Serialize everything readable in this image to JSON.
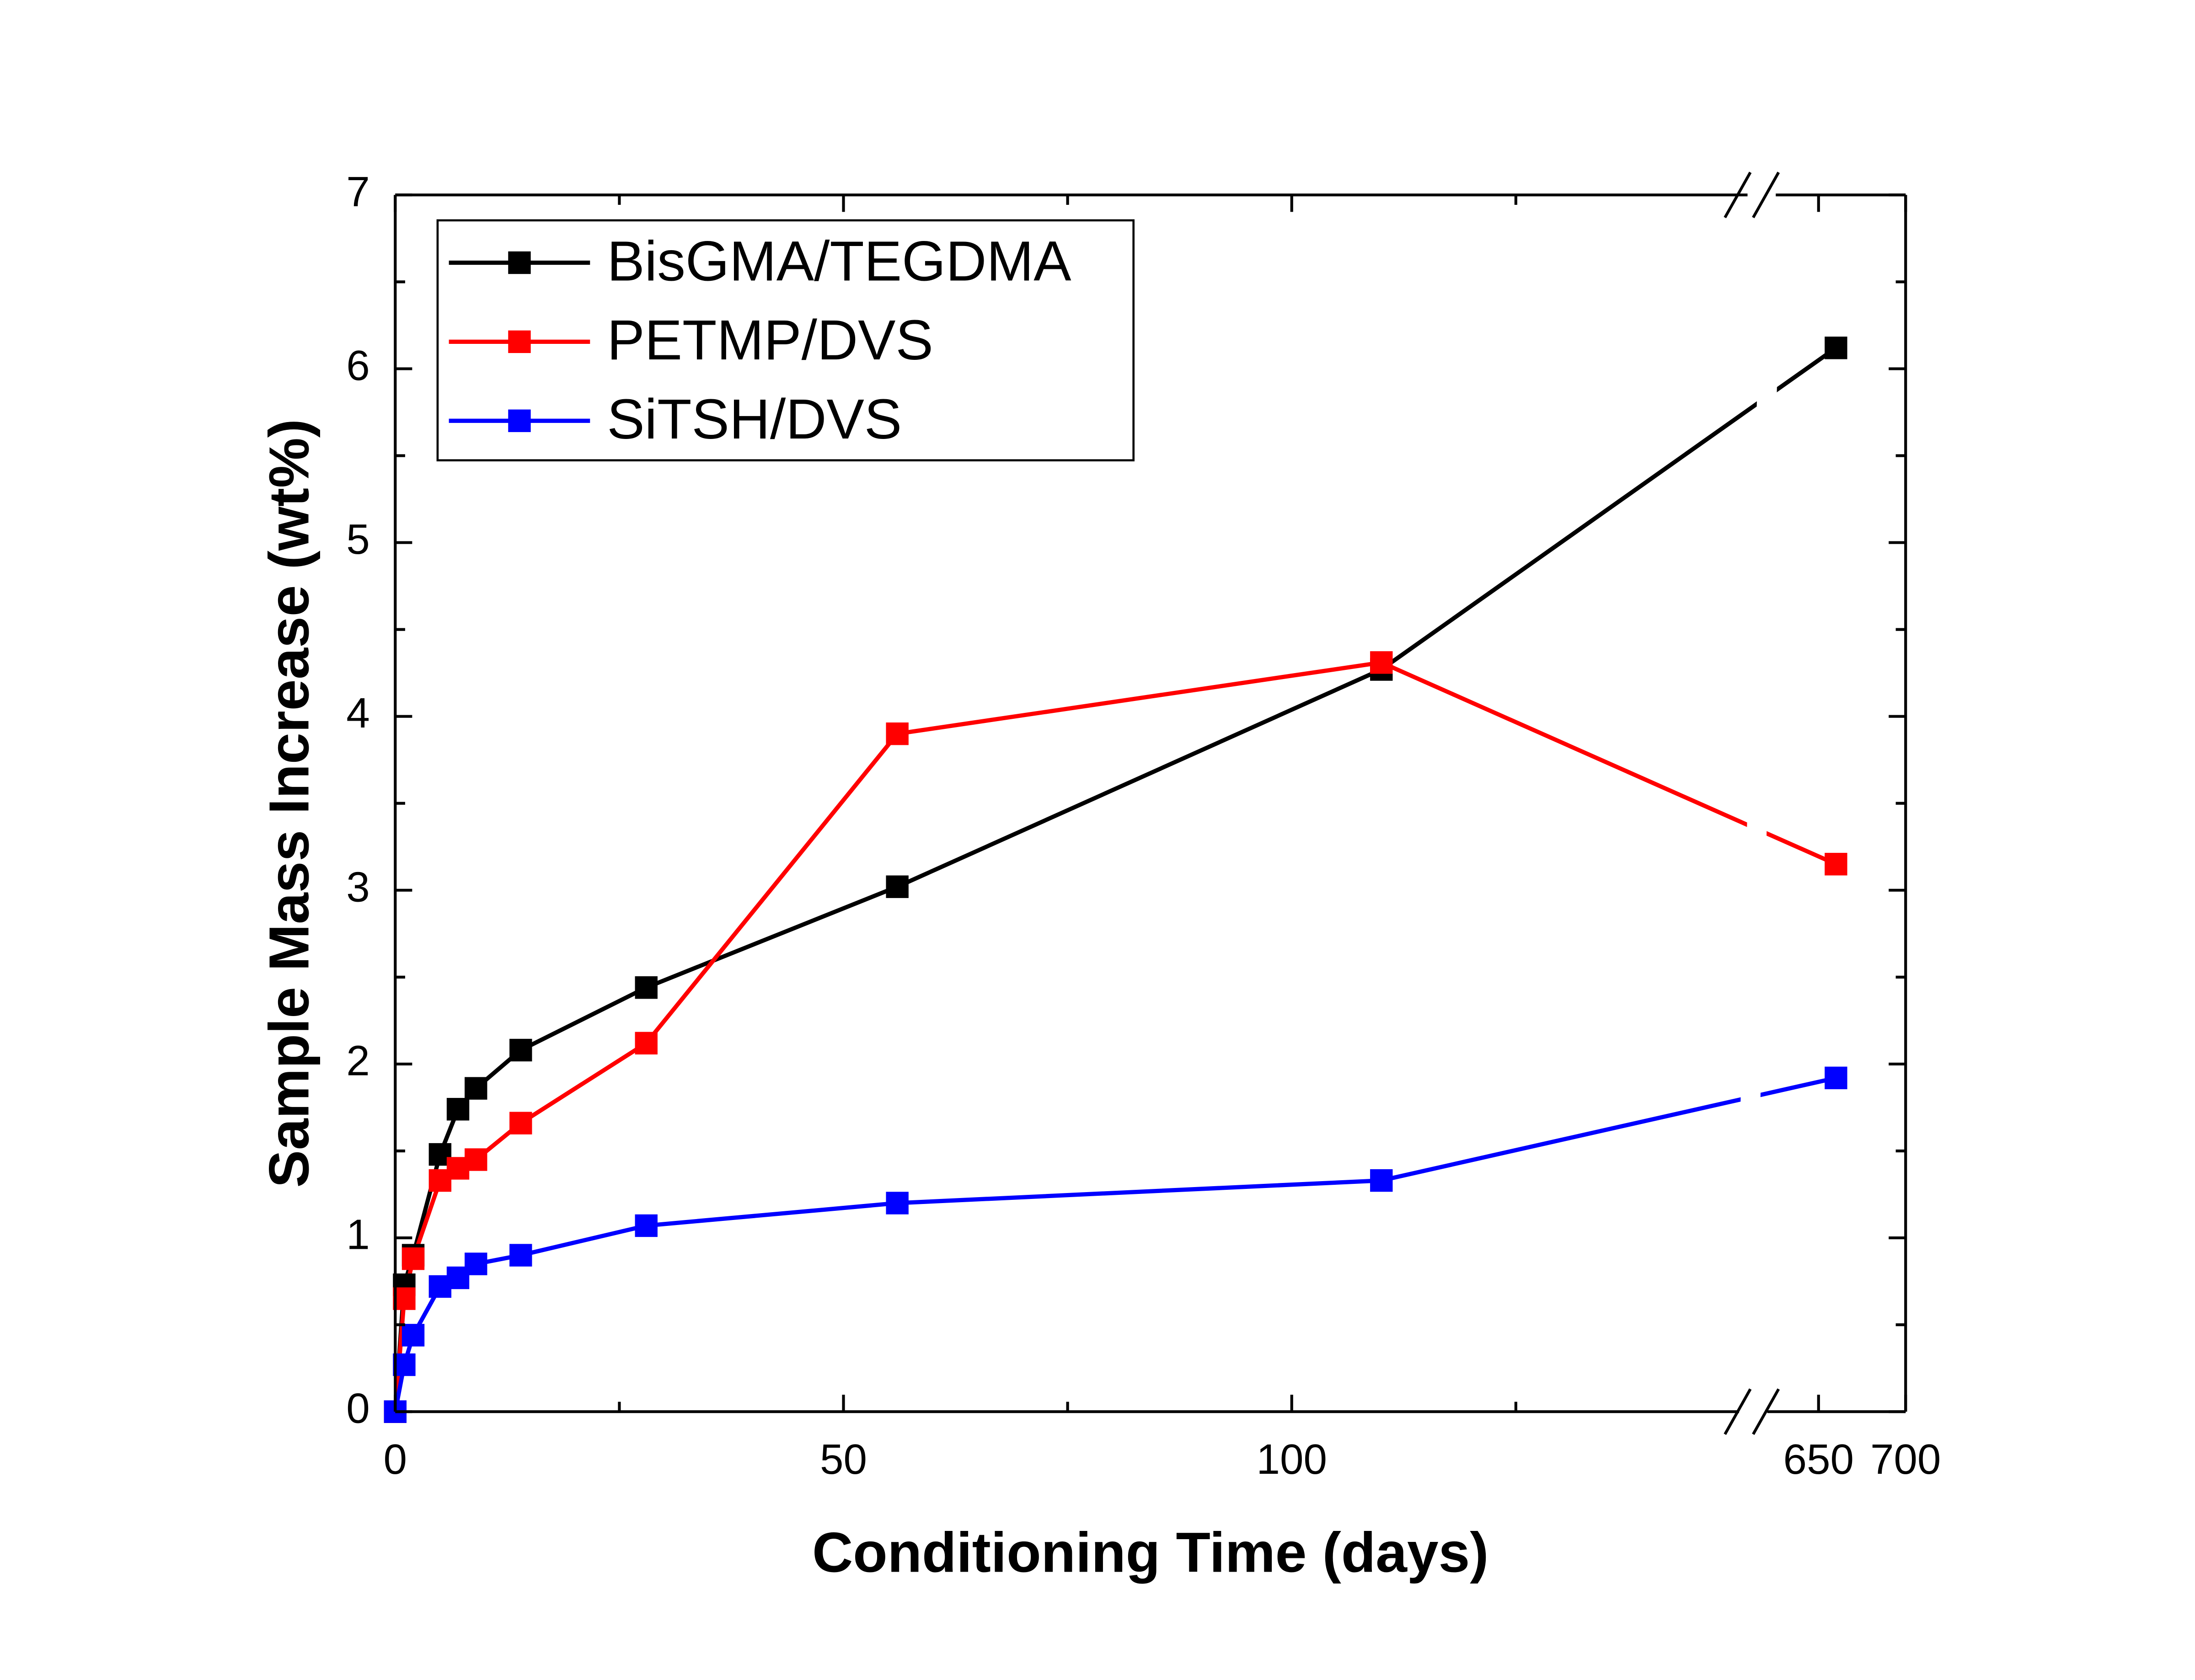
{
  "chart_data": {
    "type": "line",
    "xlabel": "Conditioning Time (days)",
    "ylabel": "Sample Mass Increase (wt%)",
    "x": [
      0,
      1,
      2,
      5,
      7,
      9,
      14,
      28,
      56,
      110,
      660
    ],
    "series": [
      {
        "name": "BisGMA/TEGDMA",
        "color": "#000000",
        "values": [
          0,
          0.73,
          0.9,
          1.48,
          1.74,
          1.86,
          2.08,
          2.44,
          3.02,
          4.27,
          6.12
        ]
      },
      {
        "name": "PETMP/DVS",
        "color": "#ff0000",
        "values": [
          0,
          0.65,
          0.88,
          1.33,
          1.4,
          1.45,
          1.66,
          2.12,
          3.9,
          4.31,
          3.15
        ]
      },
      {
        "name": "SiTSH/DVS",
        "color": "#0000ff",
        "values": [
          0,
          0.27,
          0.44,
          0.72,
          0.77,
          0.85,
          0.9,
          1.07,
          1.2,
          1.33,
          1.92
        ]
      }
    ],
    "xlim_segments": [
      [
        0,
        151
      ],
      [
        623,
        700
      ]
    ],
    "xticks": [
      0,
      50,
      100,
      650,
      700
    ],
    "xminor_ticks": [
      25,
      75,
      125
    ],
    "ylim": [
      0,
      7
    ],
    "yticks": [
      0,
      1,
      2,
      3,
      4,
      5,
      6,
      7
    ],
    "yminor_ticks": [
      0.5,
      1.5,
      2.5,
      3.5,
      4.5,
      5.5,
      6.5
    ],
    "legend": "upper left",
    "marker": "square"
  }
}
